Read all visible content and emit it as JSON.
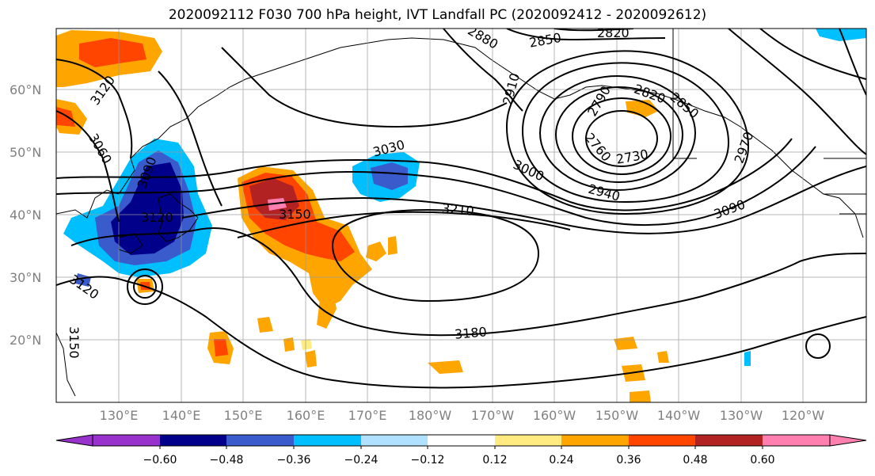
{
  "title": "2020092112 F030 700 hPa height, IVT Landfall PC (2020092412 - 2020092612)",
  "lat_ticks": [
    "60°N",
    "50°N",
    "40°N",
    "30°N",
    "20°N"
  ],
  "lon_ticks": [
    "130°E",
    "140°E",
    "150°E",
    "160°E",
    "170°E",
    "180°W",
    "170°W",
    "160°W",
    "150°W",
    "140°W",
    "130°W",
    "120°W"
  ],
  "contour_labels": [
    "3120",
    "3060",
    "3090",
    "3120",
    "3120",
    "3150",
    "3150",
    "3030",
    "2910",
    "2880",
    "2850",
    "2820",
    "2820",
    "2850",
    "2760",
    "2730",
    "2790",
    "3000",
    "2940",
    "3090",
    "2970",
    "3210",
    "3180"
  ],
  "colorbar": {
    "labels": [
      "−0.60",
      "−0.48",
      "−0.36",
      "−0.24",
      "−0.12",
      "0.12",
      "0.24",
      "0.36",
      "0.48",
      "0.60"
    ],
    "colors": [
      "#9932cc",
      "#00008b",
      "#3a5bcc",
      "#00bfff",
      "#b0e2ff",
      "#ffffff",
      "#ffeb80",
      "#ffa500",
      "#ff4500",
      "#b22222",
      "#ff80b0"
    ]
  },
  "chart_data": {
    "type": "heatmap",
    "title": "2020092112 F030 700 hPa height, IVT Landfall PC (2020092412 - 2020092612)",
    "lat_range": [
      "10°N",
      "70°N"
    ],
    "lon_range": [
      "120°E",
      "110°W"
    ],
    "contour_values": [
      2730,
      2760,
      2790,
      2820,
      2850,
      2880,
      2910,
      2940,
      2970,
      3000,
      3030,
      3060,
      3090,
      3120,
      3150,
      3180,
      3210
    ],
    "colorbar_levels": [
      -0.6,
      -0.48,
      -0.36,
      -0.24,
      -0.12,
      0.12,
      0.24,
      0.36,
      0.48,
      0.6
    ]
  }
}
